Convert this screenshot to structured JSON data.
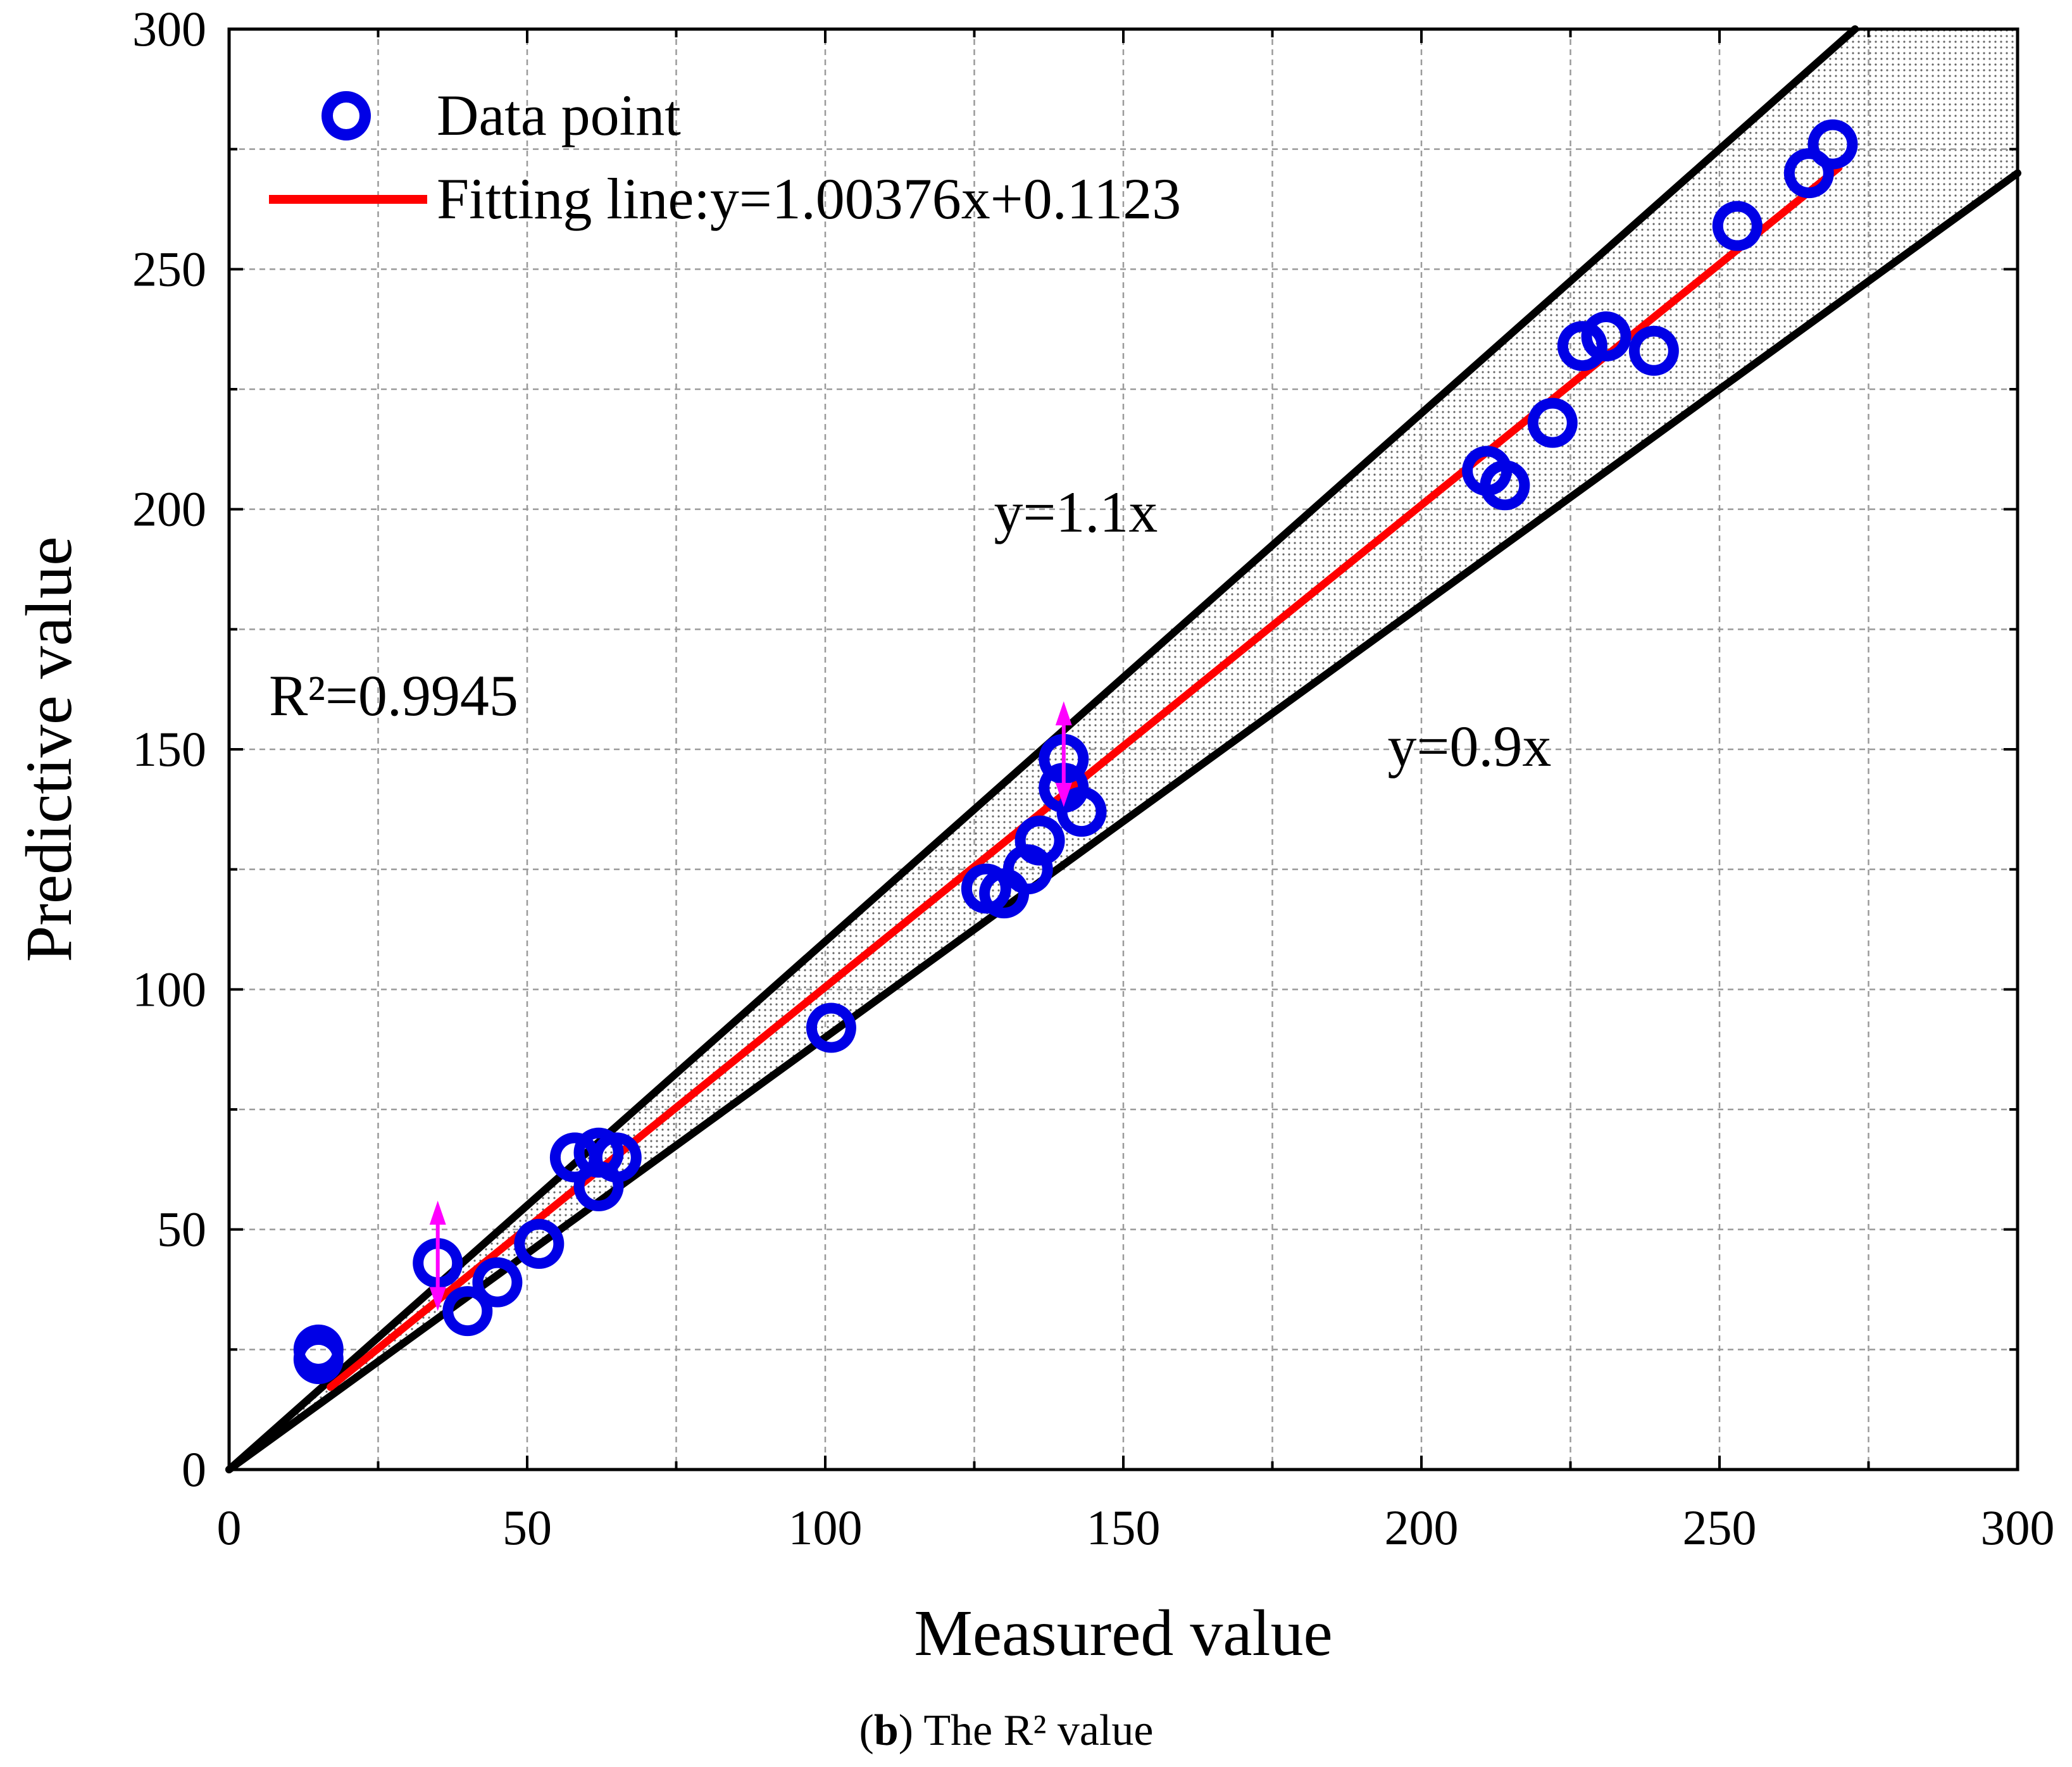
{
  "chart_data": {
    "type": "scatter",
    "xlabel": "Measured value",
    "ylabel": "Predictive value",
    "xlim": [
      0,
      300
    ],
    "ylim": [
      0,
      300
    ],
    "xticks": [
      0,
      50,
      100,
      150,
      200,
      250,
      300
    ],
    "yticks": [
      0,
      50,
      100,
      150,
      200,
      250,
      300
    ],
    "grid": true,
    "legend": {
      "position": "top-left",
      "entries": [
        "Data point",
        "Fitting line:y=1.00376x+0.1123"
      ]
    },
    "series": [
      {
        "name": "Data point",
        "kind": "scatter",
        "color": "#0000e6",
        "points": [
          [
            15,
            25
          ],
          [
            15,
            23
          ],
          [
            35,
            43
          ],
          [
            40,
            33
          ],
          [
            45,
            39
          ],
          [
            52,
            47
          ],
          [
            58,
            65
          ],
          [
            62,
            66
          ],
          [
            62,
            59
          ],
          [
            65,
            65
          ],
          [
            101,
            92
          ],
          [
            127,
            121
          ],
          [
            130,
            120
          ],
          [
            134,
            125
          ],
          [
            136,
            131
          ],
          [
            140,
            148
          ],
          [
            140,
            142
          ],
          [
            143,
            137
          ],
          [
            211,
            208
          ],
          [
            214,
            205
          ],
          [
            222,
            218
          ],
          [
            227,
            234
          ],
          [
            231,
            236
          ],
          [
            239,
            233
          ],
          [
            253,
            259
          ],
          [
            265,
            270
          ],
          [
            269,
            276
          ]
        ]
      },
      {
        "name": "Fitting line:y=1.00376x+0.1123",
        "kind": "line",
        "color": "#ff0000",
        "slope": 1.00376,
        "intercept": 0.1123,
        "x_range": [
          17,
          270
        ]
      },
      {
        "name": "y=1.1x",
        "kind": "line",
        "color": "#000000",
        "slope": 1.1,
        "intercept": 0
      },
      {
        "name": "y=0.9x",
        "kind": "line",
        "color": "#000000",
        "slope": 0.9,
        "intercept": 0
      }
    ],
    "error_markers": [
      {
        "x": 35,
        "y_low": 33,
        "y_high": 56,
        "color": "#ff00ff"
      },
      {
        "x": 140,
        "y_low": 138,
        "y_high": 160,
        "color": "#ff00ff"
      }
    ],
    "annotations": {
      "upper_line_label": "y=1.1x",
      "lower_line_label": "y=0.9x",
      "r2": "R²=0.9945"
    },
    "caption": {
      "letter": "b",
      "text": " The R² value"
    }
  }
}
